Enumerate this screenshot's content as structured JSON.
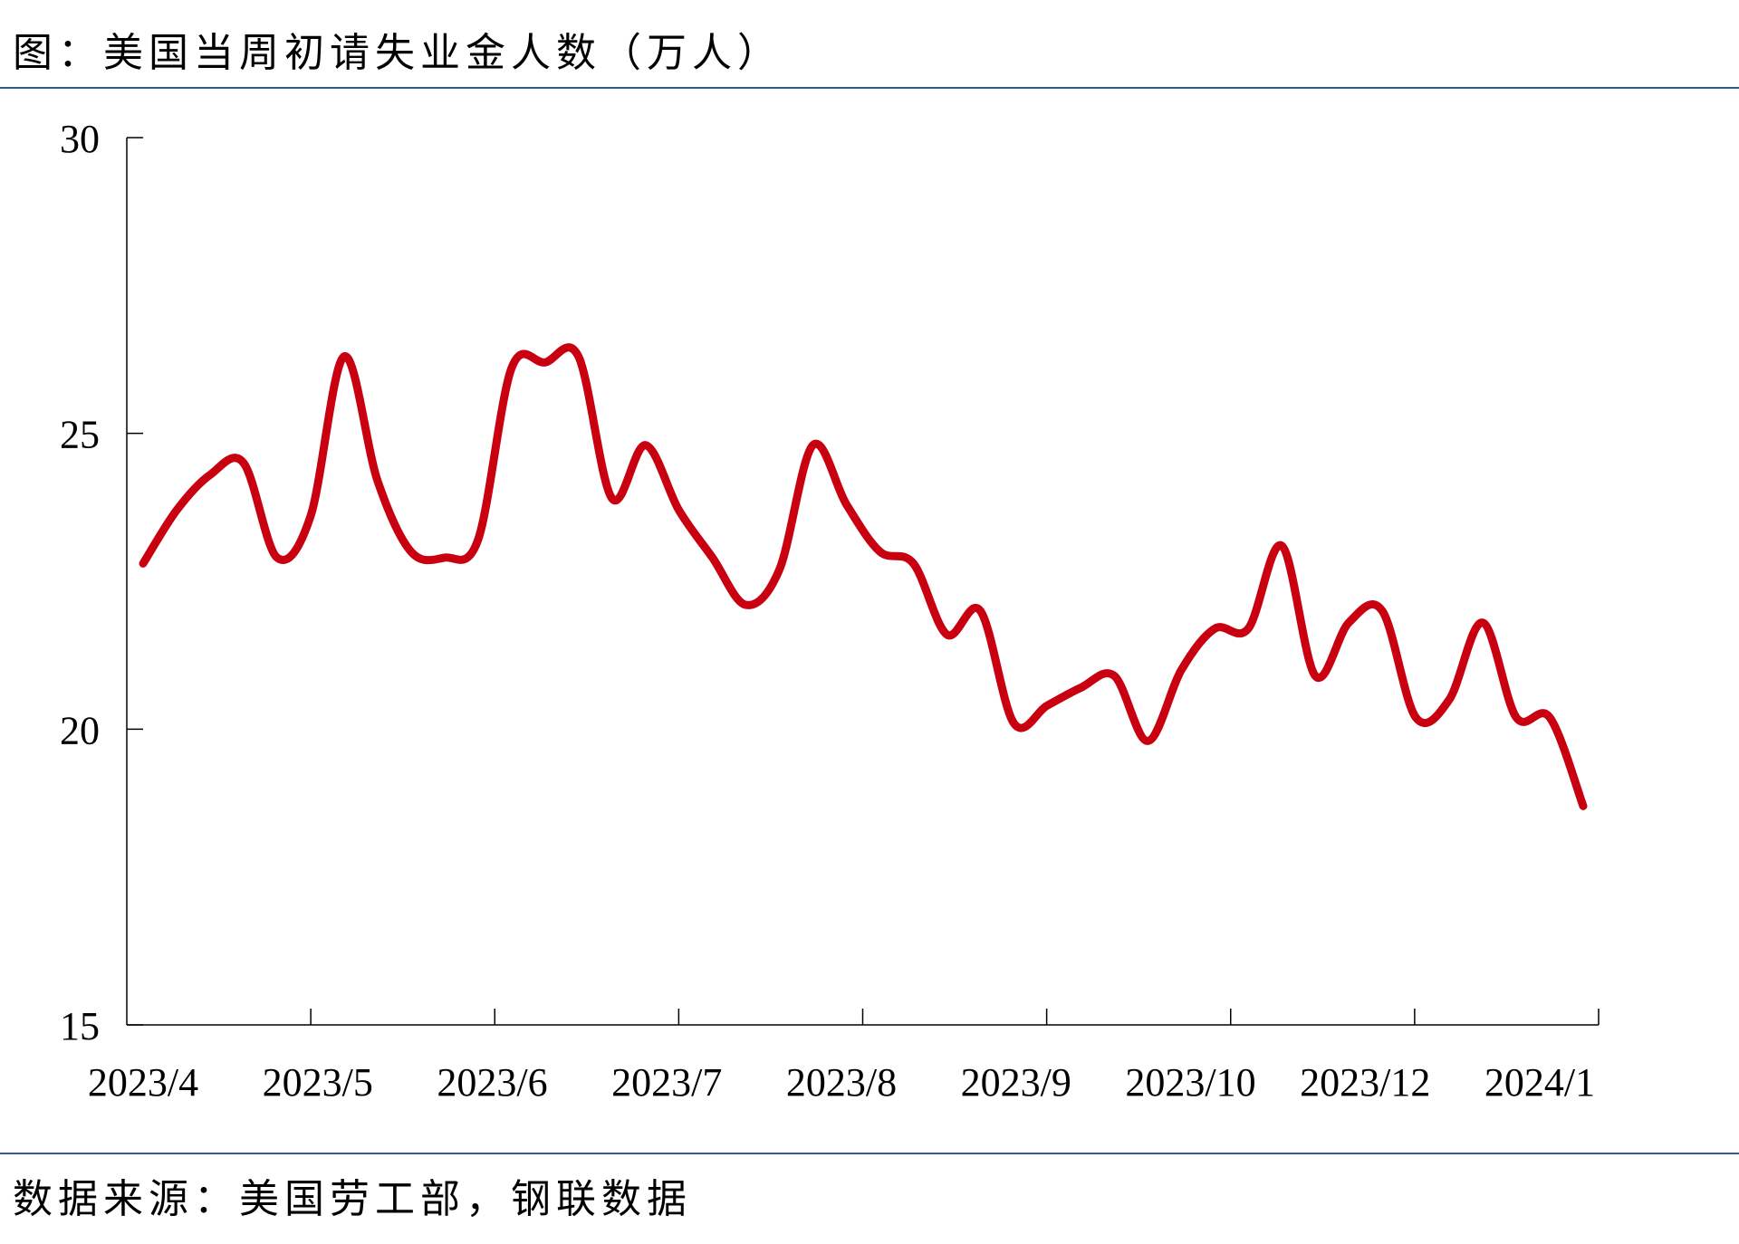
{
  "header": {
    "title": "图：美国当周初请失业金人数（万人）"
  },
  "footer": {
    "source": "数据来源：美国劳工部，钢联数据"
  },
  "colors": {
    "line": "#c8000f",
    "rule": "#2f5d8a",
    "axis": "#000000"
  },
  "chart_data": {
    "type": "line",
    "title": "图：美国当周初请失业金人数（万人）",
    "xlabel": "",
    "ylabel": "",
    "ylim": [
      15,
      30
    ],
    "yticks": [
      15,
      20,
      25,
      30
    ],
    "xtick_labels": [
      "2023/4",
      "2023/5",
      "2023/6",
      "2023/7",
      "2023/8",
      "2023/9",
      "2023/10",
      "2023/12",
      "2024/1"
    ],
    "grid": false,
    "legend": "none",
    "series": [
      {
        "values": [
          22.8,
          23.7,
          24.3,
          24.5,
          22.9,
          23.6,
          26.3,
          24.2,
          23.0,
          22.9,
          23.2,
          26.1,
          26.2,
          26.3,
          23.9,
          24.8,
          23.7,
          22.9,
          22.1,
          22.7,
          24.8,
          23.8,
          23.0,
          22.8,
          21.6,
          22.0,
          20.1,
          20.4,
          20.7,
          20.9,
          19.8,
          21.0,
          21.7,
          21.7,
          23.1,
          20.9,
          21.8,
          22.0,
          20.2,
          20.5,
          21.8,
          20.2,
          20.2,
          18.7
        ]
      }
    ]
  }
}
